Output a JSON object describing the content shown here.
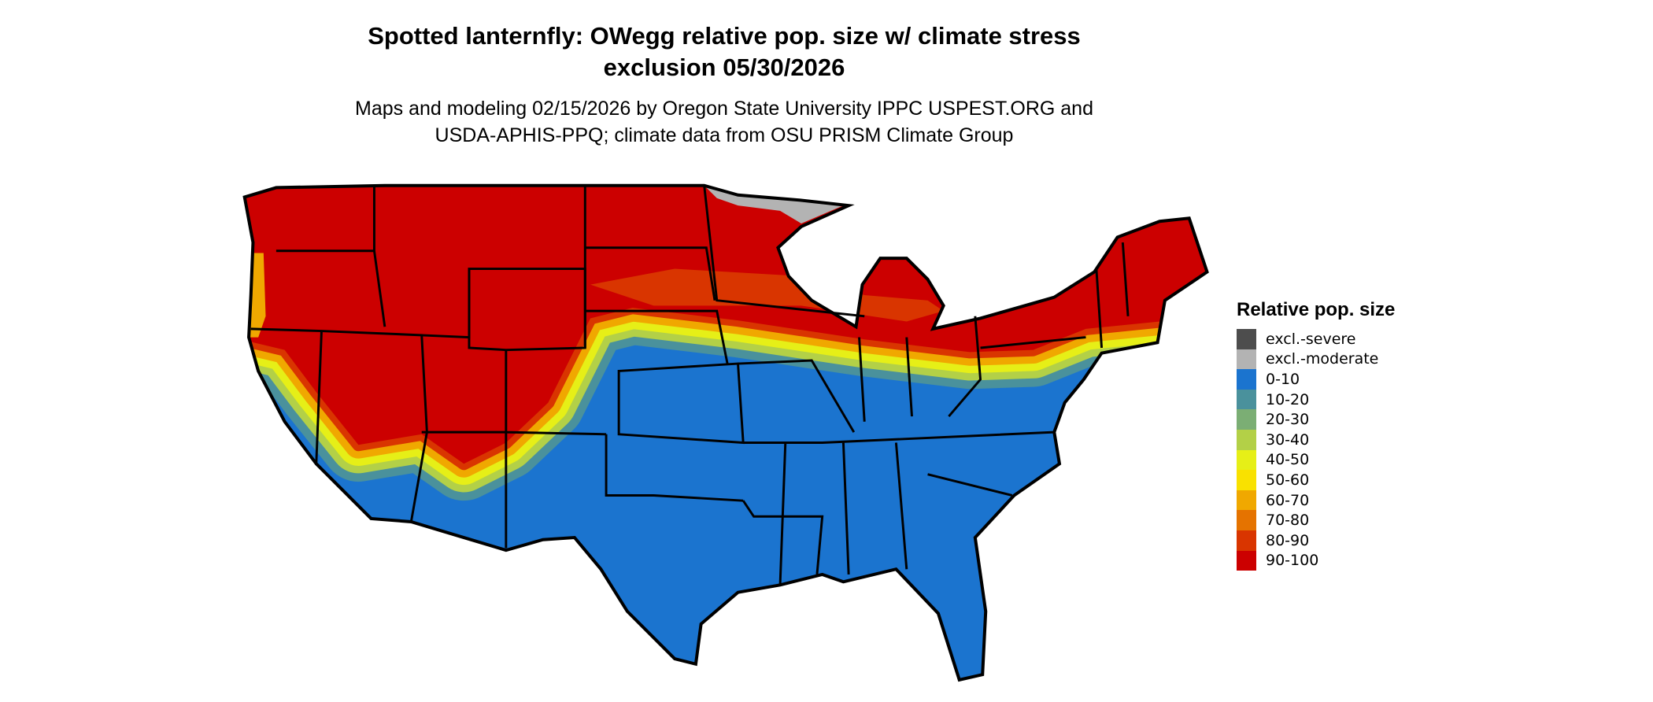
{
  "chart_data": {
    "type": "map",
    "title_line1": "Spotted lanternfly: OWegg relative pop. size w/ climate stress",
    "title_line2": "exclusion 05/30/2026",
    "subtitle_line1": "Maps and modeling 02/15/2026 by Oregon State University IPPC USPEST.ORG and",
    "subtitle_line2": "USDA-APHIS-PPQ; climate data from OSU PRISM Climate Group",
    "legend": {
      "title": "Relative pop. size",
      "placement": "right",
      "items": [
        {
          "label": "excl.-severe",
          "color": "#4d4d4d"
        },
        {
          "label": "excl.-moderate",
          "color": "#b3b3b3"
        },
        {
          "label": "0-10",
          "color": "#1b74cf"
        },
        {
          "label": "10-20",
          "color": "#4a919c"
        },
        {
          "label": "20-30",
          "color": "#7bae74"
        },
        {
          "label": "30-40",
          "color": "#b3d047"
        },
        {
          "label": "40-50",
          "color": "#e6ef17"
        },
        {
          "label": "50-60",
          "color": "#f9e100"
        },
        {
          "label": "60-70",
          "color": "#f0a800"
        },
        {
          "label": "70-80",
          "color": "#e57300"
        },
        {
          "label": "80-90",
          "color": "#d93500"
        },
        {
          "label": "90-100",
          "color": "#cc0000"
        }
      ]
    }
  }
}
